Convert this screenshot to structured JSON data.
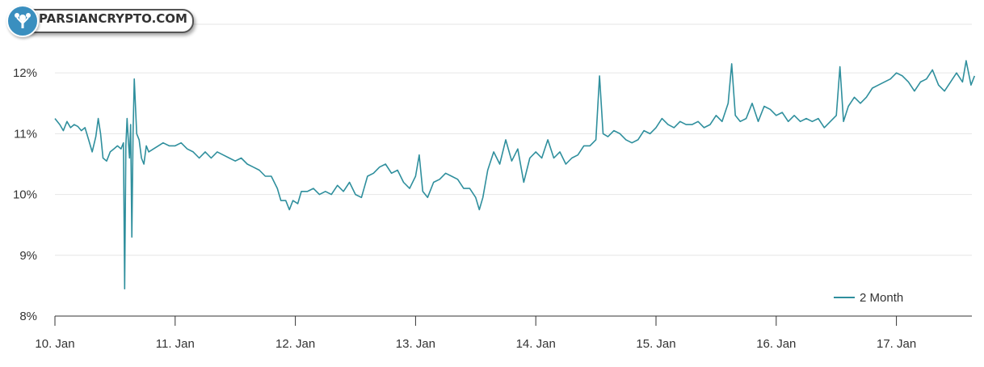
{
  "logo": {
    "text": "PARSIANCRYPTO.COM"
  },
  "chart_data": {
    "type": "line",
    "title": "",
    "xlabel": "",
    "ylabel": "",
    "x_ticks": [
      "10. Jan",
      "11. Jan",
      "12. Jan",
      "13. Jan",
      "14. Jan",
      "15. Jan",
      "16. Jan",
      "17. Jan"
    ],
    "y_ticks": [
      "8%",
      "9%",
      "10%",
      "11%",
      "12%"
    ],
    "ylim": [
      8,
      12.8
    ],
    "xlim": [
      0,
      7.65
    ],
    "grid": true,
    "legend_position": "bottom-right",
    "series": [
      {
        "name": "2 Month",
        "color": "#2f8f9d",
        "points": [
          [
            0.0,
            11.25
          ],
          [
            0.04,
            11.15
          ],
          [
            0.07,
            11.05
          ],
          [
            0.1,
            11.2
          ],
          [
            0.13,
            11.1
          ],
          [
            0.16,
            11.15
          ],
          [
            0.19,
            11.12
          ],
          [
            0.22,
            11.05
          ],
          [
            0.25,
            11.1
          ],
          [
            0.28,
            10.9
          ],
          [
            0.31,
            10.7
          ],
          [
            0.34,
            10.95
          ],
          [
            0.36,
            11.25
          ],
          [
            0.38,
            11.0
          ],
          [
            0.4,
            10.6
          ],
          [
            0.43,
            10.55
          ],
          [
            0.46,
            10.7
          ],
          [
            0.49,
            10.75
          ],
          [
            0.52,
            10.8
          ],
          [
            0.55,
            10.75
          ],
          [
            0.57,
            10.85
          ],
          [
            0.58,
            8.45
          ],
          [
            0.59,
            10.8
          ],
          [
            0.6,
            11.25
          ],
          [
            0.61,
            10.9
          ],
          [
            0.62,
            10.6
          ],
          [
            0.63,
            11.15
          ],
          [
            0.64,
            9.3
          ],
          [
            0.65,
            11.0
          ],
          [
            0.66,
            11.9
          ],
          [
            0.68,
            11.0
          ],
          [
            0.7,
            10.9
          ],
          [
            0.72,
            10.6
          ],
          [
            0.74,
            10.5
          ],
          [
            0.76,
            10.8
          ],
          [
            0.78,
            10.7
          ],
          [
            0.82,
            10.75
          ],
          [
            0.86,
            10.8
          ],
          [
            0.9,
            10.85
          ],
          [
            0.95,
            10.8
          ],
          [
            1.0,
            10.8
          ],
          [
            1.05,
            10.85
          ],
          [
            1.1,
            10.75
          ],
          [
            1.15,
            10.7
          ],
          [
            1.2,
            10.6
          ],
          [
            1.25,
            10.7
          ],
          [
            1.3,
            10.6
          ],
          [
            1.35,
            10.7
          ],
          [
            1.4,
            10.65
          ],
          [
            1.45,
            10.6
          ],
          [
            1.5,
            10.55
          ],
          [
            1.55,
            10.6
          ],
          [
            1.6,
            10.5
          ],
          [
            1.65,
            10.45
          ],
          [
            1.7,
            10.4
          ],
          [
            1.75,
            10.3
          ],
          [
            1.8,
            10.3
          ],
          [
            1.85,
            10.1
          ],
          [
            1.88,
            9.9
          ],
          [
            1.92,
            9.9
          ],
          [
            1.95,
            9.75
          ],
          [
            1.98,
            9.9
          ],
          [
            2.02,
            9.85
          ],
          [
            2.05,
            10.05
          ],
          [
            2.1,
            10.05
          ],
          [
            2.15,
            10.1
          ],
          [
            2.2,
            10.0
          ],
          [
            2.25,
            10.05
          ],
          [
            2.3,
            10.0
          ],
          [
            2.35,
            10.15
          ],
          [
            2.4,
            10.05
          ],
          [
            2.45,
            10.2
          ],
          [
            2.5,
            10.0
          ],
          [
            2.55,
            9.95
          ],
          [
            2.6,
            10.3
          ],
          [
            2.65,
            10.35
          ],
          [
            2.7,
            10.45
          ],
          [
            2.75,
            10.5
          ],
          [
            2.8,
            10.35
          ],
          [
            2.85,
            10.4
          ],
          [
            2.9,
            10.2
          ],
          [
            2.95,
            10.1
          ],
          [
            3.0,
            10.3
          ],
          [
            3.03,
            10.65
          ],
          [
            3.06,
            10.05
          ],
          [
            3.1,
            9.95
          ],
          [
            3.15,
            10.2
          ],
          [
            3.2,
            10.25
          ],
          [
            3.25,
            10.35
          ],
          [
            3.3,
            10.3
          ],
          [
            3.35,
            10.25
          ],
          [
            3.4,
            10.1
          ],
          [
            3.45,
            10.1
          ],
          [
            3.5,
            9.95
          ],
          [
            3.53,
            9.75
          ],
          [
            3.56,
            9.95
          ],
          [
            3.6,
            10.4
          ],
          [
            3.65,
            10.7
          ],
          [
            3.7,
            10.5
          ],
          [
            3.75,
            10.9
          ],
          [
            3.8,
            10.55
          ],
          [
            3.85,
            10.75
          ],
          [
            3.9,
            10.2
          ],
          [
            3.95,
            10.6
          ],
          [
            4.0,
            10.7
          ],
          [
            4.05,
            10.6
          ],
          [
            4.1,
            10.9
          ],
          [
            4.15,
            10.6
          ],
          [
            4.2,
            10.7
          ],
          [
            4.25,
            10.5
          ],
          [
            4.3,
            10.6
          ],
          [
            4.35,
            10.65
          ],
          [
            4.4,
            10.8
          ],
          [
            4.45,
            10.8
          ],
          [
            4.5,
            10.9
          ],
          [
            4.53,
            11.95
          ],
          [
            4.56,
            11.0
          ],
          [
            4.6,
            10.95
          ],
          [
            4.65,
            11.05
          ],
          [
            4.7,
            11.0
          ],
          [
            4.75,
            10.9
          ],
          [
            4.8,
            10.85
          ],
          [
            4.85,
            10.9
          ],
          [
            4.9,
            11.05
          ],
          [
            4.95,
            11.0
          ],
          [
            5.0,
            11.1
          ],
          [
            5.05,
            11.25
          ],
          [
            5.1,
            11.15
          ],
          [
            5.15,
            11.1
          ],
          [
            5.2,
            11.2
          ],
          [
            5.25,
            11.15
          ],
          [
            5.3,
            11.15
          ],
          [
            5.35,
            11.2
          ],
          [
            5.4,
            11.1
          ],
          [
            5.45,
            11.15
          ],
          [
            5.5,
            11.3
          ],
          [
            5.55,
            11.2
          ],
          [
            5.6,
            11.5
          ],
          [
            5.63,
            12.15
          ],
          [
            5.66,
            11.3
          ],
          [
            5.7,
            11.2
          ],
          [
            5.75,
            11.25
          ],
          [
            5.8,
            11.5
          ],
          [
            5.85,
            11.2
          ],
          [
            5.9,
            11.45
          ],
          [
            5.95,
            11.4
          ],
          [
            6.0,
            11.3
          ],
          [
            6.05,
            11.35
          ],
          [
            6.1,
            11.2
          ],
          [
            6.15,
            11.3
          ],
          [
            6.2,
            11.2
          ],
          [
            6.25,
            11.25
          ],
          [
            6.3,
            11.2
          ],
          [
            6.35,
            11.25
          ],
          [
            6.4,
            11.1
          ],
          [
            6.45,
            11.2
          ],
          [
            6.5,
            11.3
          ],
          [
            6.53,
            12.1
          ],
          [
            6.56,
            11.2
          ],
          [
            6.6,
            11.45
          ],
          [
            6.65,
            11.6
          ],
          [
            6.7,
            11.5
          ],
          [
            6.75,
            11.6
          ],
          [
            6.8,
            11.75
          ],
          [
            6.85,
            11.8
          ],
          [
            6.9,
            11.85
          ],
          [
            6.95,
            11.9
          ],
          [
            7.0,
            12.0
          ],
          [
            7.05,
            11.95
          ],
          [
            7.1,
            11.85
          ],
          [
            7.15,
            11.7
          ],
          [
            7.2,
            11.85
          ],
          [
            7.25,
            11.9
          ],
          [
            7.3,
            12.05
          ],
          [
            7.35,
            11.8
          ],
          [
            7.4,
            11.7
          ],
          [
            7.45,
            11.85
          ],
          [
            7.5,
            12.0
          ],
          [
            7.55,
            11.85
          ],
          [
            7.58,
            12.2
          ],
          [
            7.62,
            11.8
          ],
          [
            7.65,
            11.95
          ]
        ]
      }
    ]
  }
}
